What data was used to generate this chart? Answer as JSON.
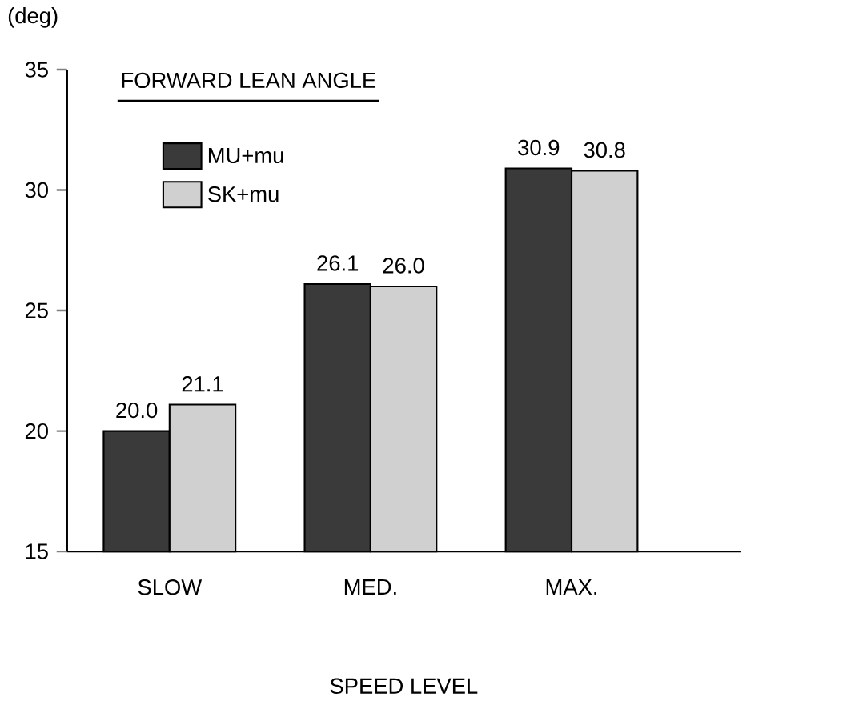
{
  "chart_data": {
    "type": "bar",
    "title": "FORWARD LEAN ANGLE",
    "xlabel": "SPEED LEVEL",
    "ylabel": "(deg)",
    "categories": [
      "SLOW",
      "MED.",
      "MAX."
    ],
    "series": [
      {
        "name": "MU+mu",
        "color": "#3a3a3a",
        "values": [
          20.0,
          26.1,
          30.9
        ],
        "value_labels": [
          "20.0",
          "26.1",
          "30.9"
        ]
      },
      {
        "name": "SK+mu",
        "color": "#d0d0d0",
        "values": [
          21.1,
          26.0,
          30.8
        ],
        "value_labels": [
          "21.1",
          "26.0",
          "30.8"
        ]
      }
    ],
    "ylim": [
      15,
      35
    ],
    "yticks": [
      15,
      20,
      25,
      30,
      35
    ],
    "legend": "top left"
  }
}
